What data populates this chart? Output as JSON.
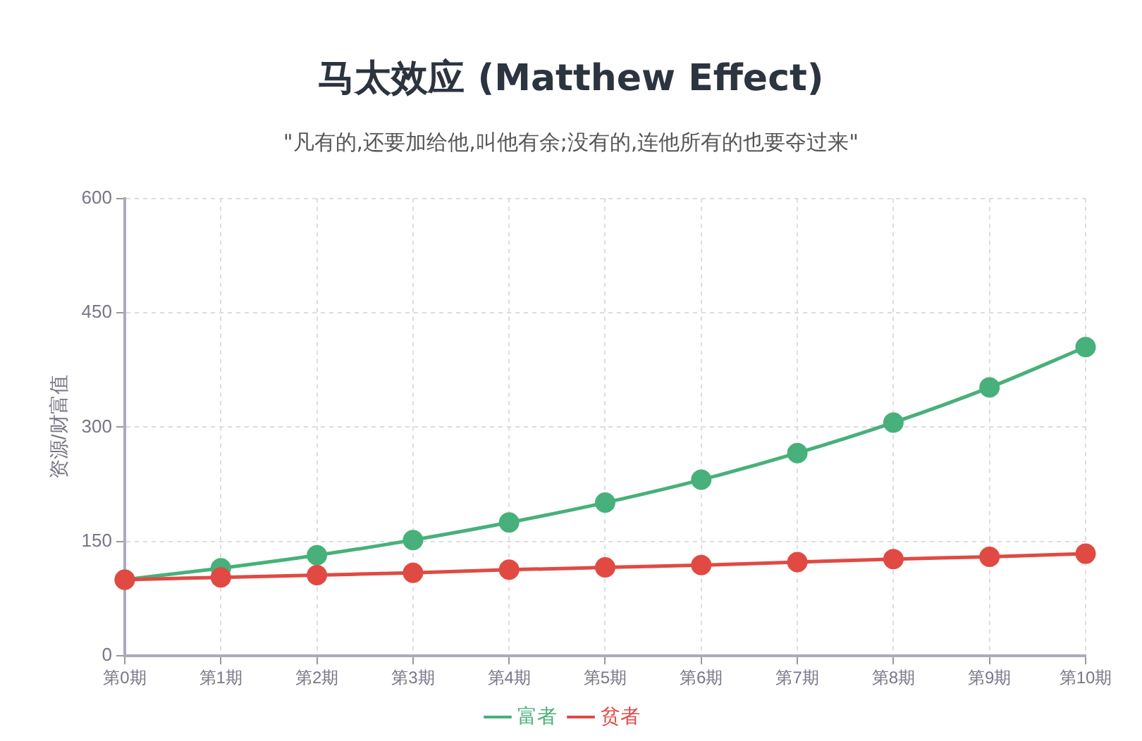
{
  "chart_data": {
    "type": "line",
    "title": "马太效应 (Matthew Effect)",
    "subtitle": "\"凡有的,还要加给他,叫他有余;没有的,连他所有的也要夺过来\"",
    "ylabel": "资源/财富值",
    "categories": [
      "第0期",
      "第1期",
      "第2期",
      "第3期",
      "第4期",
      "第5期",
      "第6期",
      "第7期",
      "第8期",
      "第9期",
      "第10期"
    ],
    "series": [
      {
        "name": "富者",
        "color": "#48b07a",
        "values": [
          100,
          115,
          132,
          152,
          175,
          201,
          231,
          266,
          306,
          352,
          405
        ]
      },
      {
        "name": "贫者",
        "color": "#e04a43",
        "values": [
          100,
          103,
          106,
          109,
          113,
          116,
          119,
          123,
          127,
          130,
          134
        ]
      }
    ],
    "ylim": [
      0,
      600
    ],
    "yticks": [
      0,
      150,
      300,
      450,
      600
    ],
    "grid": true,
    "legend": "bottom",
    "marker": "circle",
    "line_style": "solid"
  }
}
